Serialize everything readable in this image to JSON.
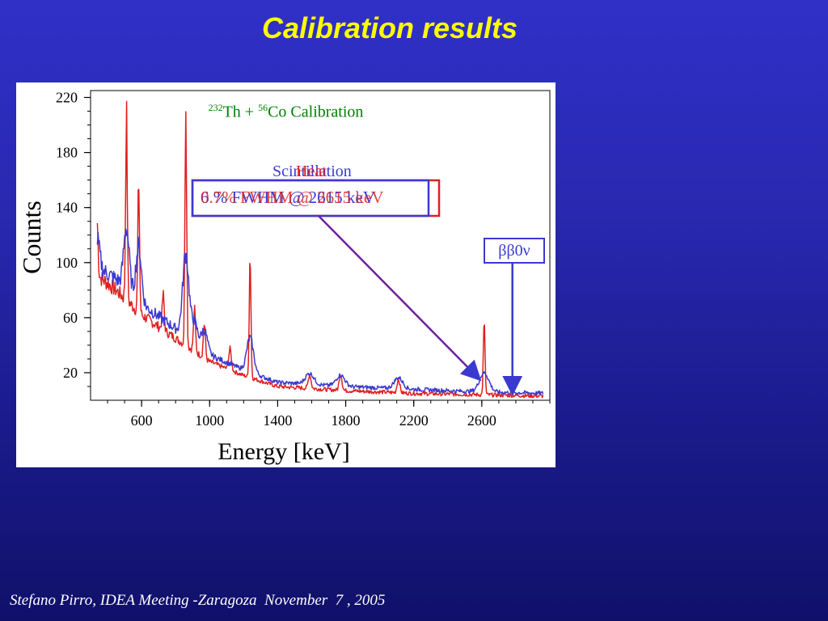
{
  "slide": {
    "title": "Calibration results",
    "footer": "Stefano Pirro, IDEA Meeting -Zaragoza  November  7 , 2005"
  },
  "chart_data": {
    "type": "line",
    "title_parts": {
      "iso1": "232",
      "el1": "Th + ",
      "iso2": "56",
      "el2": "Co Calibration"
    },
    "xlabel": "Energy  [keV]",
    "ylabel": "Counts",
    "xlim": [
      300,
      3000
    ],
    "ylim": [
      0,
      225
    ],
    "x_ticks": [
      600,
      1000,
      1400,
      1800,
      2200,
      2600
    ],
    "y_ticks": [
      20,
      60,
      100,
      140,
      180,
      220
    ],
    "series": [
      {
        "name": "Heat",
        "color": "#e02020",
        "baseline": [
          [
            300,
            95
          ],
          [
            450,
            80
          ],
          [
            600,
            62
          ],
          [
            800,
            45
          ],
          [
            1000,
            28
          ],
          [
            1200,
            18
          ],
          [
            1400,
            10
          ],
          [
            1800,
            7
          ],
          [
            2200,
            5
          ],
          [
            2600,
            4
          ],
          [
            3000,
            3
          ]
        ],
        "peaks": [
          [
            338,
            40,
            6
          ],
          [
            511,
            135,
            5
          ],
          [
            583,
            95,
            5
          ],
          [
            727,
            25,
            6
          ],
          [
            860,
            180,
            5
          ],
          [
            911,
            30,
            6
          ],
          [
            969,
            25,
            6
          ],
          [
            1120,
            15,
            8
          ],
          [
            1238,
            90,
            5
          ],
          [
            1588,
            10,
            8
          ],
          [
            1770,
            12,
            8
          ],
          [
            2110,
            10,
            8
          ],
          [
            2614,
            52,
            5
          ]
        ]
      },
      {
        "name": "Scintillation",
        "color": "#3a3ad0",
        "baseline": [
          [
            300,
            100
          ],
          [
            450,
            88
          ],
          [
            600,
            70
          ],
          [
            800,
            52
          ],
          [
            1000,
            33
          ],
          [
            1200,
            22
          ],
          [
            1400,
            13
          ],
          [
            1800,
            10
          ],
          [
            2200,
            8
          ],
          [
            2600,
            6
          ],
          [
            3000,
            5
          ]
        ],
        "peaks": [
          [
            338,
            20,
            15
          ],
          [
            511,
            45,
            16
          ],
          [
            583,
            40,
            16
          ],
          [
            860,
            60,
            18
          ],
          [
            911,
            15,
            18
          ],
          [
            969,
            15,
            18
          ],
          [
            1238,
            25,
            20
          ],
          [
            1588,
            8,
            25
          ],
          [
            1770,
            8,
            25
          ],
          [
            2110,
            8,
            25
          ],
          [
            2614,
            14,
            28
          ]
        ]
      }
    ],
    "annotations": {
      "scint_label": "Scintillation",
      "heat_label": "Heat",
      "scint_fwhm": "6 % FWHM @ 2615 keV",
      "heat_fwhm": "0.7% FWHM @ 2615 keV",
      "bb0v_label": "ββ0ν",
      "peak_marker_energy": 2600,
      "bb0v_marker_energy": 2780
    }
  }
}
